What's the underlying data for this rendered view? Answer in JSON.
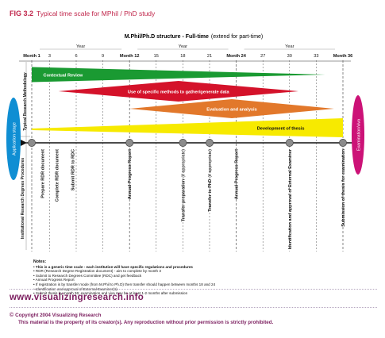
{
  "figure": {
    "number": "FIG 3.2",
    "title": "Typical time scale for MPhil / PhD study"
  },
  "diagram": {
    "heading_bold": "M.Phil/Ph.D structure - Full-time",
    "heading_extra": "(extend for part-time)",
    "year_label": "Year",
    "month_ticks": [
      {
        "label": "Month 1",
        "bold": true
      },
      {
        "label": "3",
        "bold": false
      },
      {
        "label": "6",
        "bold": false
      },
      {
        "label": "9",
        "bold": false
      },
      {
        "label": "Month 12",
        "bold": true
      },
      {
        "label": "15",
        "bold": false
      },
      {
        "label": "18",
        "bold": false
      },
      {
        "label": "21",
        "bold": false
      },
      {
        "label": "Month 24",
        "bold": true
      },
      {
        "label": "27",
        "bold": false
      },
      {
        "label": "30",
        "bold": false
      },
      {
        "label": "33",
        "bold": false
      },
      {
        "label": "Month 36",
        "bold": true
      }
    ],
    "side_label_top": "Typical Research Methodology",
    "side_label_bottom": "Institutional Research Degrees Procedures",
    "application_stage": "Application stage",
    "examination_stage": "Examination/viva",
    "bars": [
      {
        "label": "Contextual Review",
        "color": "#1a9a32",
        "start_month": 1,
        "end_month": 34,
        "shape": "wedge"
      },
      {
        "label": "Use of specific methods to gather/generate data",
        "color": "#d4122a",
        "start_month": 4,
        "end_month": 31,
        "shape": "diamond"
      },
      {
        "label": "Evaluation and analysis",
        "color": "#e2782b",
        "start_month": 12,
        "end_month": 35,
        "shape": "diamond"
      },
      {
        "label": "Development of thesis",
        "color": "#f7ea00",
        "start_month": 1,
        "end_month": 36,
        "shape": "wedge"
      }
    ],
    "milestones": [
      {
        "text": "Prepare RDR document",
        "month": 2.2,
        "note": ""
      },
      {
        "text": "Complete RDR document",
        "month": 3.8,
        "note": ""
      },
      {
        "text": "Submit RDR to RDC",
        "month": 5.6,
        "note": ""
      },
      {
        "text": "Annual Progress Report",
        "month": 12,
        "note": ""
      },
      {
        "text": "Transfer preparation",
        "month": 18,
        "note": "(if appropriate)"
      },
      {
        "text": "Transfer to PhD",
        "month": 21,
        "note": "(if appropriate)"
      },
      {
        "text": "Annual Progress Report",
        "month": 24,
        "note": ""
      },
      {
        "text": "Identification and approval of External Examiner",
        "month": 30,
        "note": ""
      },
      {
        "text": "Submission of thesis for examination",
        "month": 36,
        "note": ""
      }
    ],
    "timeline_markers": [
      1,
      12,
      18,
      21,
      30,
      36
    ]
  },
  "notes": {
    "title": "Notes:",
    "items": [
      "This is a generic time scale - each institution will have specific regulations and procedures",
      "RDR (Research Degree Registration document) - aim to complete by month 3",
      "Submit to Research Degrees Committee (RDC) and get feedback",
      "Annual Progress Report",
      "If registration is by transfer mode (from M.Phil to Ph.D) then transfer should happen between months 18 and 24",
      "Identification and approval of External Examiner(s)",
      "Submit thesis by month 36; examination and viva may be at least 1-2 months after submission"
    ]
  },
  "footer": {
    "website": "www.visualizingresearch.info",
    "copyright_mark": "©",
    "copyright": "Copyright 2004 Visualizing Research",
    "property": "This material is the property of its creator(s). Any reproduction without prior permission is strictly prohibited."
  },
  "colors": {
    "accent": "#c0264b",
    "footer": "#7b1d5e",
    "application_stage": "#0f8ed3",
    "examination_stage": "#cc1277"
  }
}
